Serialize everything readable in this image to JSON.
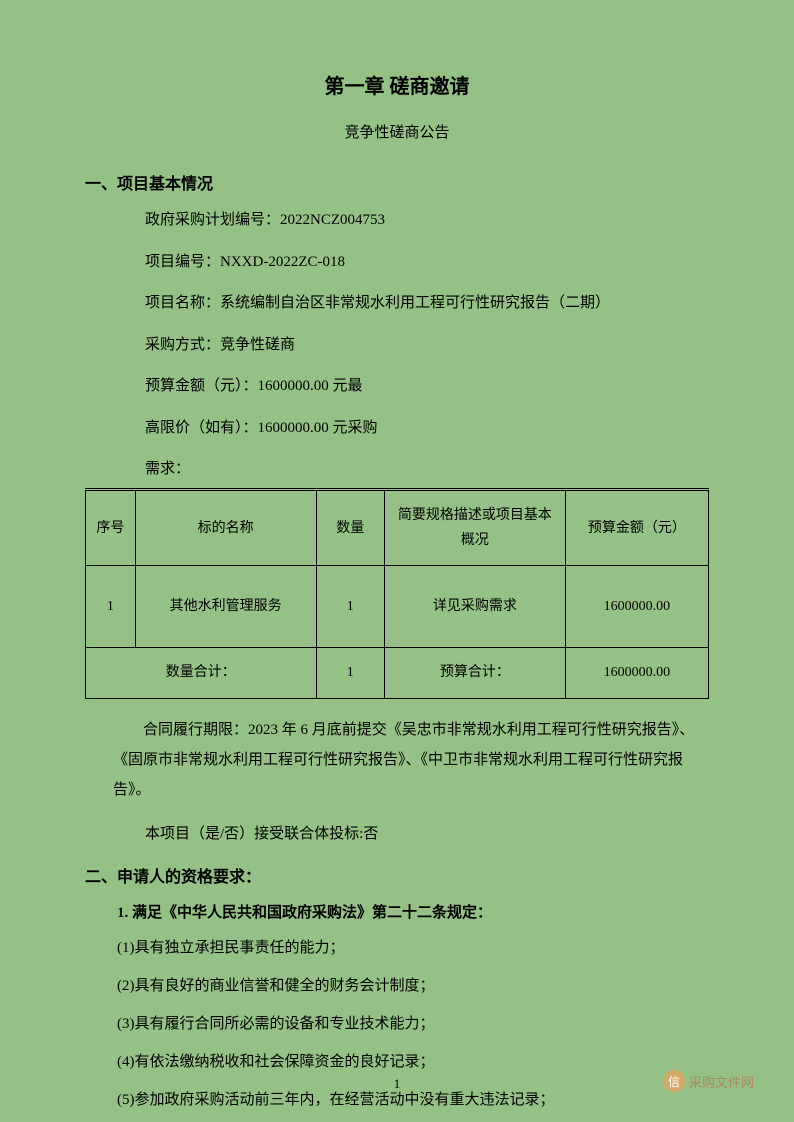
{
  "chapter": {
    "title": "第一章 磋商邀请",
    "subtitle": "竞争性磋商公告"
  },
  "section1": {
    "heading": "一、项目基本情况",
    "plan_no_label": "政府采购计划编号：",
    "plan_no_value": "2022NCZ004753",
    "project_no_label": "项目编号：",
    "project_no_value": "NXXD-2022ZC-018",
    "project_name_label": "项目名称：",
    "project_name_value": "系统编制自治区非常规水利用工程可行性研究报告（二期）",
    "method_label": "采购方式：",
    "method_value": "竞争性磋商",
    "budget_label": "预算金额（元）：",
    "budget_value": "1600000.00 元最",
    "ceiling_label": "高限价（如有）：",
    "ceiling_value": "1600000.00 元采购",
    "requirements_label": "需求："
  },
  "table": {
    "headers": {
      "seq": "序号",
      "name": "标的名称",
      "qty": "数量",
      "desc": "简要规格描述或项目基本概况",
      "budget": "预算金额（元）"
    },
    "row": {
      "seq": "1",
      "name": "其他水利管理服务",
      "qty": "1",
      "desc": "详见采购需求",
      "budget": "1600000.00"
    },
    "summary": {
      "qty_label": "数量合计：",
      "qty_value": "1",
      "budget_label": "预算合计：",
      "budget_value": "1600000.00"
    }
  },
  "contract_period": "合同履行期限：2023 年 6 月底前提交《吴忠市非常规水利用工程可行性研究报告》、《固原市非常规水利用工程可行性研究报告》、《中卫市非常规水利用工程可行性研究报告》。",
  "consortium": "本项目（是/否）接受联合体投标:否",
  "section2": {
    "heading": "二、申请人的资格要求：",
    "rule_title": "1. 满足《中华人民共和国政府采购法》第二十二条规定：",
    "items": [
      "(1)具有独立承担民事责任的能力；",
      "(2)具有良好的商业信誉和健全的财务会计制度；",
      "(3)具有履行合同所必需的设备和专业技术能力；",
      "(4)有依法缴纳税收和社会保障资金的良好记录；",
      "(5)参加政府采购活动前三年内，在经营活动中没有重大违法记录；"
    ]
  },
  "page_number": "1",
  "watermark": {
    "icon": "信",
    "text": "采购文件网"
  },
  "colors": {
    "background": "#95c187",
    "text": "#000000",
    "border": "#000000",
    "watermark": "#a88a5c"
  }
}
